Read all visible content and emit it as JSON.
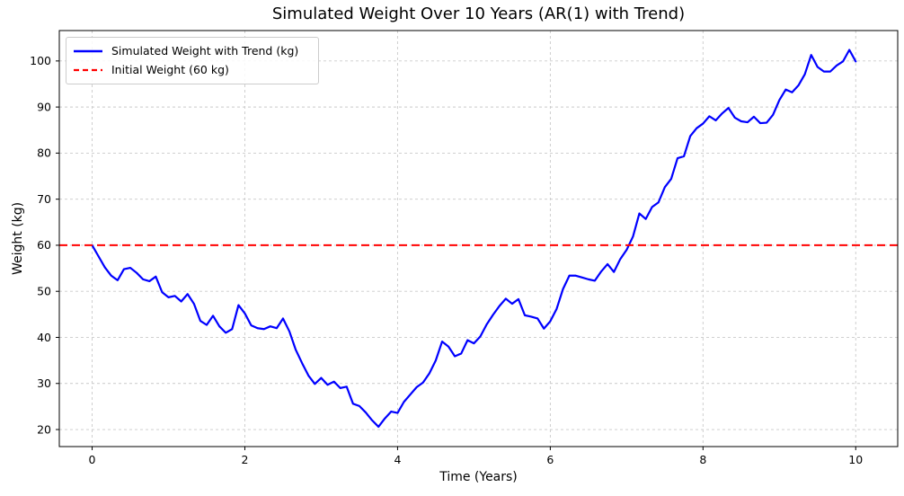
{
  "figure": {
    "background": "#ffffff"
  },
  "chart_data": {
    "type": "line",
    "title": "Simulated Weight Over 10 Years (AR(1) with Trend)",
    "xlabel": "Time (Years)",
    "ylabel": "Weight (kg)",
    "xlim": [
      -0.43,
      10.55
    ],
    "ylim": [
      16.3,
      106.6
    ],
    "xticks": [
      0,
      2,
      4,
      6,
      8,
      10
    ],
    "yticks": [
      20,
      30,
      40,
      50,
      60,
      70,
      80,
      90,
      100
    ],
    "grid": {
      "visible": true,
      "style": "dashed",
      "color": "#c9c9c9"
    },
    "legend": {
      "position": "upper-left"
    },
    "x_sampling": {
      "start_years": 0,
      "step_years": 0.0833333,
      "count": 121,
      "unit": "years (monthly points)"
    },
    "series": [
      {
        "name": "Simulated Weight with Trend (kg)",
        "color": "#0000ff",
        "style": "solid",
        "line_width": 2.2,
        "values": [
          60.0,
          57.6,
          55.2,
          53.4,
          52.4,
          54.8,
          55.1,
          54.0,
          52.6,
          52.2,
          53.2,
          49.8,
          48.7,
          49.0,
          47.8,
          49.4,
          47.3,
          43.6,
          42.7,
          44.7,
          42.4,
          41.0,
          41.8,
          47.0,
          45.2,
          42.6,
          42.0,
          41.8,
          42.4,
          42.0,
          44.1,
          41.3,
          37.3,
          34.4,
          31.7,
          29.9,
          31.2,
          29.7,
          30.4,
          29.0,
          29.3,
          25.6,
          25.1,
          23.7,
          22.0,
          20.6,
          22.4,
          23.9,
          23.6,
          26.0,
          27.6,
          29.2,
          30.2,
          32.2,
          35.0,
          39.1,
          38.0,
          35.9,
          36.5,
          39.4,
          38.7,
          40.2,
          42.8,
          44.9,
          46.8,
          48.4,
          47.3,
          48.3,
          44.8,
          44.5,
          44.1,
          41.9,
          43.5,
          46.2,
          50.5,
          53.4,
          53.4,
          53.0,
          52.6,
          52.3,
          54.3,
          55.9,
          54.2,
          57.0,
          59.0,
          61.9,
          66.9,
          65.7,
          68.3,
          69.3,
          72.6,
          74.4,
          78.9,
          79.3,
          83.7,
          85.4,
          86.4,
          88.0,
          87.1,
          88.6,
          89.8,
          87.7,
          86.9,
          86.7,
          87.9,
          86.5,
          86.6,
          88.3,
          91.5,
          93.8,
          93.2,
          94.7,
          97.1,
          101.3,
          98.7,
          97.7,
          97.7,
          99.0,
          99.9,
          102.4,
          99.9
        ]
      },
      {
        "name": "Initial Weight (60 kg)",
        "color": "#ff0000",
        "style": "dashed",
        "line_width": 2,
        "constant_value": 60
      }
    ]
  }
}
